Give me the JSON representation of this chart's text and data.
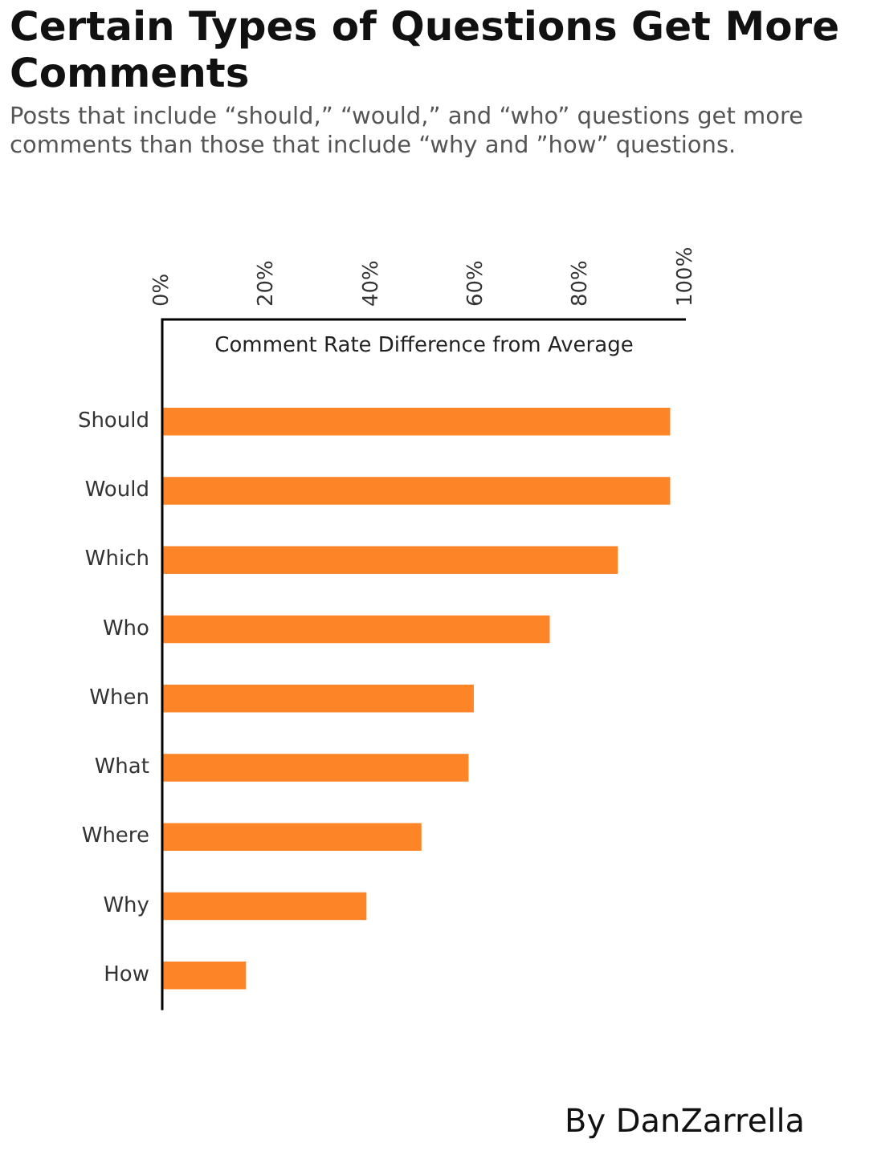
{
  "chart_data": {
    "type": "bar",
    "orientation": "horizontal",
    "title": "Certain Types of Questions Get More Comments",
    "subtitle": "Posts that include “should,” “would,” and “who” questions get more comments than those that include “why and ”how” questions.",
    "xlabel": "Comment Rate Difference from Average",
    "categories": [
      "Should",
      "Would",
      "Which",
      "Who",
      "When",
      "What",
      "Where",
      "Why",
      "How"
    ],
    "values": [
      97,
      97,
      87,
      74,
      59.5,
      58.5,
      49.5,
      39,
      16
    ],
    "color": "#fd8427",
    "xlim": [
      0,
      100
    ],
    "xticks": [
      {
        "value": 0,
        "label": "0%"
      },
      {
        "value": 20,
        "label": "20%"
      },
      {
        "value": 40,
        "label": "40%"
      },
      {
        "value": 60,
        "label": "60%"
      },
      {
        "value": 80,
        "label": "80%"
      },
      {
        "value": 100,
        "label": "100%"
      }
    ],
    "grid": false,
    "legend": false,
    "annotations": [
      "By DanZarrella"
    ]
  }
}
